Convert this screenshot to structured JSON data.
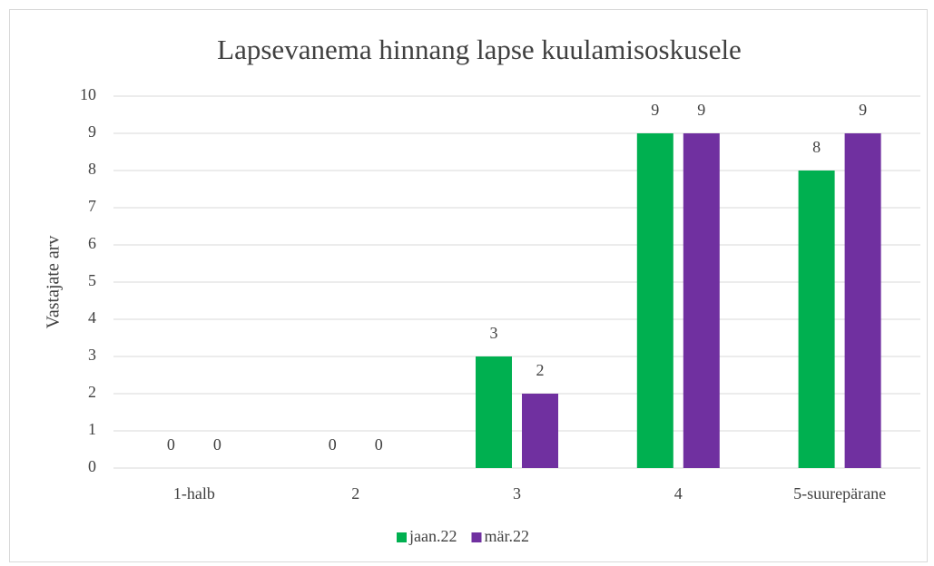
{
  "chart_data": {
    "type": "bar",
    "title": "Lapsevanema hinnang lapse kuulamisoskusele",
    "ylabel": "Vastajate arv",
    "categories": [
      "1-halb",
      "2",
      "3",
      "4",
      "5-suurepärane"
    ],
    "series": [
      {
        "name": "jaan.22",
        "color": "#00b050",
        "values": [
          0,
          0,
          3,
          9,
          8
        ]
      },
      {
        "name": "mär.22",
        "color": "#7030a0",
        "values": [
          0,
          0,
          2,
          9,
          9
        ]
      }
    ],
    "ylim": [
      0,
      10
    ],
    "yticks": [
      0,
      1,
      2,
      3,
      4,
      5,
      6,
      7,
      8,
      9,
      10
    ],
    "grid": true,
    "legend": "bottom",
    "data_labels": true
  }
}
